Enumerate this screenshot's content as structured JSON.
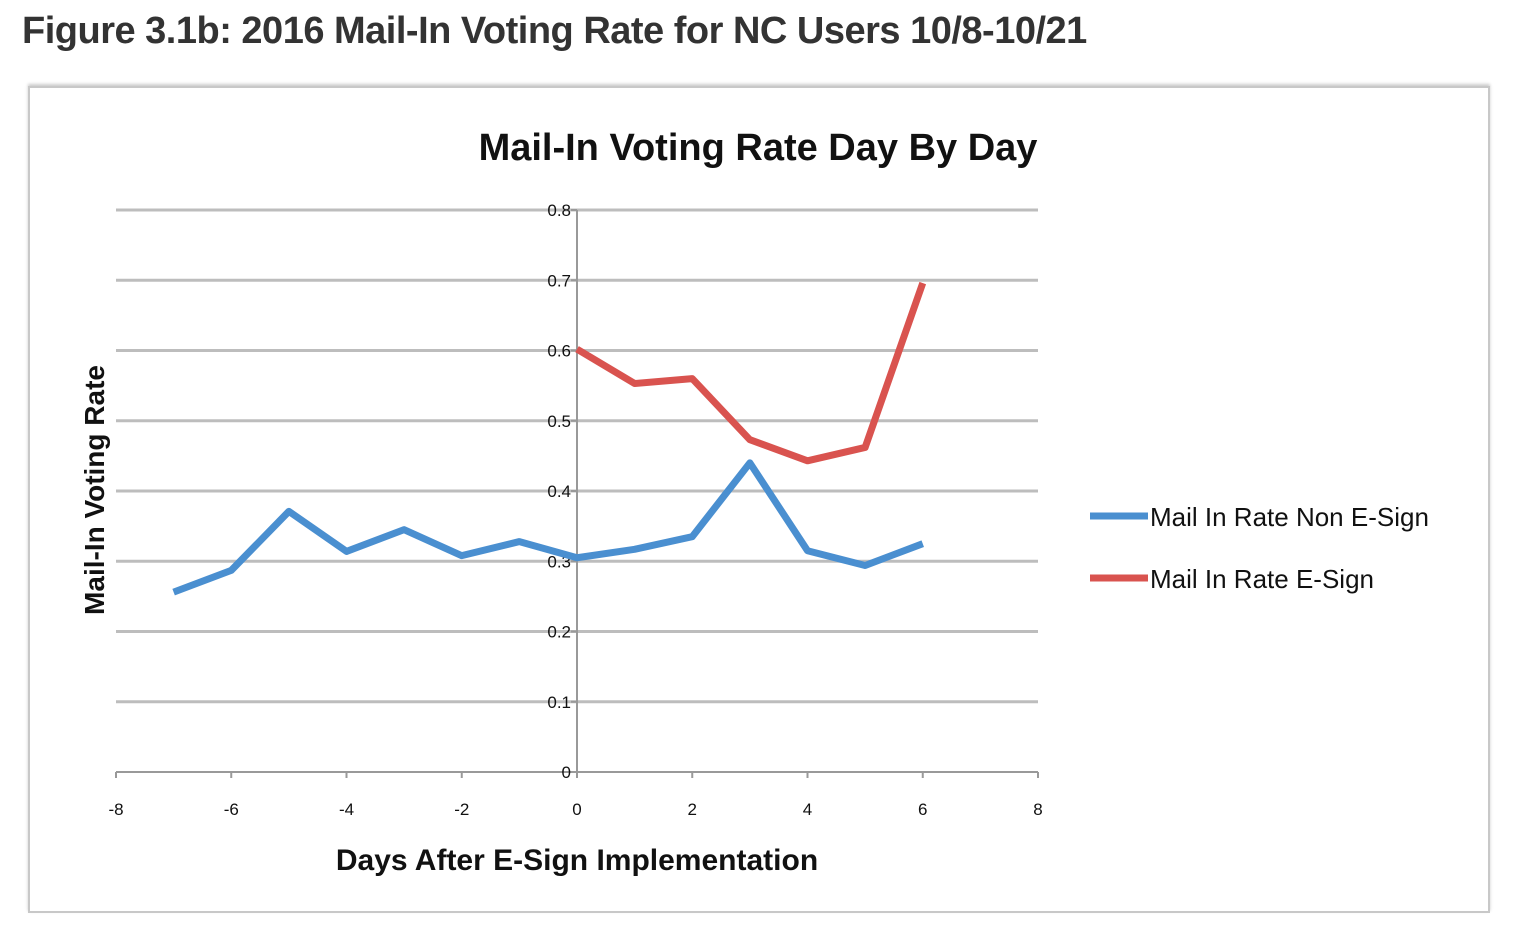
{
  "figure_title": "Figure 3.1b: 2016 Mail-In Voting Rate for NC Users 10/8-10/21",
  "chart_data": {
    "type": "line",
    "title": "Mail-In Voting Rate Day By Day",
    "xlabel": "Days After E-Sign Implementation",
    "ylabel": "Mail-In Voting Rate",
    "xlim": [
      -8,
      8
    ],
    "ylim": [
      0,
      0.8
    ],
    "x_ticks": [
      "-8",
      "-6",
      "-4",
      "-2",
      "0",
      "2",
      "4",
      "6",
      "8"
    ],
    "y_ticks": [
      "0",
      "0.1",
      "0.2",
      "0.3",
      "0.4",
      "0.5",
      "0.6",
      "0.7",
      "0.8"
    ],
    "grid": true,
    "legend_position": "right",
    "series": [
      {
        "name": "Mail In Rate Non E-Sign",
        "color": "#4a8fd0",
        "x": [
          -7,
          -6,
          -5,
          -4,
          -3,
          -2,
          -1,
          0,
          1,
          2,
          3,
          4,
          5,
          6
        ],
        "values": [
          0.256,
          0.287,
          0.371,
          0.314,
          0.345,
          0.308,
          0.328,
          0.305,
          0.317,
          0.335,
          0.44,
          0.315,
          0.294,
          0.325
        ]
      },
      {
        "name": "Mail In Rate E-Sign",
        "color": "#d9534f",
        "x": [
          0,
          1,
          2,
          3,
          4,
          5,
          6
        ],
        "values": [
          0.602,
          0.553,
          0.56,
          0.473,
          0.443,
          0.462,
          0.696
        ]
      }
    ]
  }
}
